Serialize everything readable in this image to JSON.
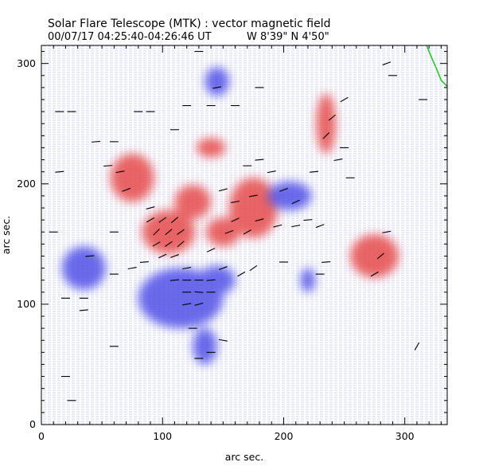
{
  "figure": {
    "title": "Solar Flare Telescope (MTK) : vector magnetic field",
    "date_time": "00/07/17  04:25:40-04:26:46 UT",
    "position": "W 8'39\"  N 4'50\"",
    "xlabel": "arc sec.",
    "ylabel": "arc sec.",
    "x_ticks": [
      "0",
      "100",
      "200",
      "300"
    ],
    "y_ticks": [
      "0",
      "100",
      "200",
      "300"
    ]
  },
  "colors": {
    "positive_field": "#e64b4b",
    "negative_field": "#4646e6",
    "limb_line": "#22cc22",
    "background": "#ffffff"
  },
  "chart_data": {
    "type": "heatmap",
    "title": "Solar Flare Telescope (MTK) : vector magnetic field",
    "xlabel": "arc sec.",
    "ylabel": "arc sec.",
    "xlim": [
      0,
      335
    ],
    "ylim": [
      0,
      315
    ],
    "x_tick_values": [
      0,
      100,
      200,
      300
    ],
    "y_tick_values": [
      0,
      100,
      200,
      300
    ],
    "positive_regions": [
      {
        "cx": 105,
        "cy": 160,
        "rx": 22,
        "ry": 18
      },
      {
        "cx": 75,
        "cy": 205,
        "rx": 18,
        "ry": 20
      },
      {
        "cx": 125,
        "cy": 185,
        "rx": 15,
        "ry": 14
      },
      {
        "cx": 150,
        "cy": 160,
        "rx": 14,
        "ry": 12
      },
      {
        "cx": 175,
        "cy": 180,
        "rx": 20,
        "ry": 25
      },
      {
        "cx": 235,
        "cy": 250,
        "rx": 8,
        "ry": 25
      },
      {
        "cx": 275,
        "cy": 140,
        "rx": 20,
        "ry": 18
      },
      {
        "cx": 140,
        "cy": 230,
        "rx": 12,
        "ry": 8
      }
    ],
    "negative_regions": [
      {
        "cx": 115,
        "cy": 105,
        "rx": 35,
        "ry": 25
      },
      {
        "cx": 35,
        "cy": 130,
        "rx": 18,
        "ry": 18
      },
      {
        "cx": 145,
        "cy": 120,
        "rx": 15,
        "ry": 12
      },
      {
        "cx": 205,
        "cy": 190,
        "rx": 18,
        "ry": 12
      },
      {
        "cx": 135,
        "cy": 65,
        "rx": 10,
        "ry": 15
      },
      {
        "cx": 145,
        "cy": 285,
        "rx": 10,
        "ry": 12
      },
      {
        "cx": 220,
        "cy": 120,
        "rx": 6,
        "ry": 10
      }
    ],
    "vectors": [
      {
        "x": 90,
        "y": 170,
        "angle": 30
      },
      {
        "x": 100,
        "y": 170,
        "angle": 35
      },
      {
        "x": 110,
        "y": 170,
        "angle": 40
      },
      {
        "x": 95,
        "y": 160,
        "angle": 45
      },
      {
        "x": 105,
        "y": 160,
        "angle": 40
      },
      {
        "x": 115,
        "y": 160,
        "angle": 35
      },
      {
        "x": 95,
        "y": 150,
        "angle": 30
      },
      {
        "x": 105,
        "y": 150,
        "angle": 35
      },
      {
        "x": 115,
        "y": 150,
        "angle": 40
      },
      {
        "x": 100,
        "y": 140,
        "angle": 25
      },
      {
        "x": 110,
        "y": 140,
        "angle": 20
      },
      {
        "x": 90,
        "y": 180,
        "angle": 15
      },
      {
        "x": 120,
        "y": 130,
        "angle": 10
      },
      {
        "x": 110,
        "y": 120,
        "angle": 5
      },
      {
        "x": 120,
        "y": 120,
        "angle": 0
      },
      {
        "x": 130,
        "y": 120,
        "angle": 0
      },
      {
        "x": 140,
        "y": 120,
        "angle": 5
      },
      {
        "x": 120,
        "y": 110,
        "angle": 0
      },
      {
        "x": 130,
        "y": 110,
        "angle": -5
      },
      {
        "x": 140,
        "y": 110,
        "angle": 0
      },
      {
        "x": 120,
        "y": 100,
        "angle": 10
      },
      {
        "x": 130,
        "y": 100,
        "angle": 15
      },
      {
        "x": 150,
        "y": 130,
        "angle": 20
      },
      {
        "x": 165,
        "y": 125,
        "angle": 30
      },
      {
        "x": 175,
        "y": 130,
        "angle": 35
      },
      {
        "x": 85,
        "y": 135,
        "angle": 5
      },
      {
        "x": 75,
        "y": 130,
        "angle": 10
      },
      {
        "x": 60,
        "y": 125,
        "angle": 0
      },
      {
        "x": 40,
        "y": 140,
        "angle": 5
      },
      {
        "x": 140,
        "y": 145,
        "angle": 25
      },
      {
        "x": 155,
        "y": 160,
        "angle": 20
      },
      {
        "x": 160,
        "y": 170,
        "angle": 25
      },
      {
        "x": 170,
        "y": 160,
        "angle": 30
      },
      {
        "x": 180,
        "y": 170,
        "angle": 15
      },
      {
        "x": 175,
        "y": 190,
        "angle": 10
      },
      {
        "x": 170,
        "y": 215,
        "angle": 0
      },
      {
        "x": 180,
        "y": 220,
        "angle": 5
      },
      {
        "x": 190,
        "y": 210,
        "angle": 10
      },
      {
        "x": 200,
        "y": 195,
        "angle": 20
      },
      {
        "x": 210,
        "y": 185,
        "angle": 25
      },
      {
        "x": 195,
        "y": 165,
        "angle": 15
      },
      {
        "x": 210,
        "y": 165,
        "angle": 10
      },
      {
        "x": 220,
        "y": 170,
        "angle": 5
      },
      {
        "x": 230,
        "y": 165,
        "angle": 20
      },
      {
        "x": 240,
        "y": 255,
        "angle": 40
      },
      {
        "x": 235,
        "y": 240,
        "angle": 45
      },
      {
        "x": 250,
        "y": 270,
        "angle": 30
      },
      {
        "x": 280,
        "y": 140,
        "angle": 40
      },
      {
        "x": 285,
        "y": 160,
        "angle": 10
      },
      {
        "x": 275,
        "y": 125,
        "angle": 30
      },
      {
        "x": 160,
        "y": 265,
        "angle": 0
      },
      {
        "x": 140,
        "y": 265,
        "angle": 0
      },
      {
        "x": 145,
        "y": 280,
        "angle": 10
      },
      {
        "x": 120,
        "y": 265,
        "angle": 0
      },
      {
        "x": 90,
        "y": 260,
        "angle": 0
      },
      {
        "x": 60,
        "y": 235,
        "angle": 0
      },
      {
        "x": 45,
        "y": 235,
        "angle": 5
      },
      {
        "x": 25,
        "y": 260,
        "angle": 0
      },
      {
        "x": 15,
        "y": 260,
        "angle": 0
      },
      {
        "x": 80,
        "y": 260,
        "angle": 0
      },
      {
        "x": 110,
        "y": 245,
        "angle": 0
      },
      {
        "x": 65,
        "y": 210,
        "angle": 10
      },
      {
        "x": 70,
        "y": 195,
        "angle": 20
      },
      {
        "x": 55,
        "y": 215,
        "angle": 5
      },
      {
        "x": 125,
        "y": 80,
        "angle": 0
      },
      {
        "x": 150,
        "y": 70,
        "angle": -10
      },
      {
        "x": 140,
        "y": 60,
        "angle": 0
      },
      {
        "x": 130,
        "y": 55,
        "angle": 0
      },
      {
        "x": 60,
        "y": 65,
        "angle": 0
      },
      {
        "x": 35,
        "y": 105,
        "angle": 0
      },
      {
        "x": 20,
        "y": 105,
        "angle": 0
      },
      {
        "x": 35,
        "y": 95,
        "angle": 5
      },
      {
        "x": 20,
        "y": 40,
        "angle": 0
      },
      {
        "x": 25,
        "y": 20,
        "angle": 0
      },
      {
        "x": 310,
        "y": 65,
        "angle": 60
      },
      {
        "x": 285,
        "y": 300,
        "angle": 20
      },
      {
        "x": 290,
        "y": 290,
        "angle": 0
      },
      {
        "x": 315,
        "y": 270,
        "angle": 0
      },
      {
        "x": 250,
        "y": 230,
        "angle": 0
      },
      {
        "x": 255,
        "y": 205,
        "angle": 0
      },
      {
        "x": 225,
        "y": 210,
        "angle": 5
      },
      {
        "x": 245,
        "y": 220,
        "angle": 10
      },
      {
        "x": 15,
        "y": 210,
        "angle": 5
      },
      {
        "x": 10,
        "y": 160,
        "angle": 0
      },
      {
        "x": 60,
        "y": 160,
        "angle": 0
      },
      {
        "x": 130,
        "y": 310,
        "angle": 0
      },
      {
        "x": 180,
        "y": 280,
        "angle": 0
      },
      {
        "x": 230,
        "y": 125,
        "angle": 0
      },
      {
        "x": 235,
        "y": 135,
        "angle": 5
      },
      {
        "x": 200,
        "y": 135,
        "angle": 0
      },
      {
        "x": 160,
        "y": 185,
        "angle": 10
      },
      {
        "x": 150,
        "y": 195,
        "angle": 15
      }
    ],
    "limb": [
      [
        318,
        315
      ],
      [
        322,
        305
      ],
      [
        326,
        296
      ],
      [
        330,
        286
      ],
      [
        335,
        281
      ]
    ]
  }
}
